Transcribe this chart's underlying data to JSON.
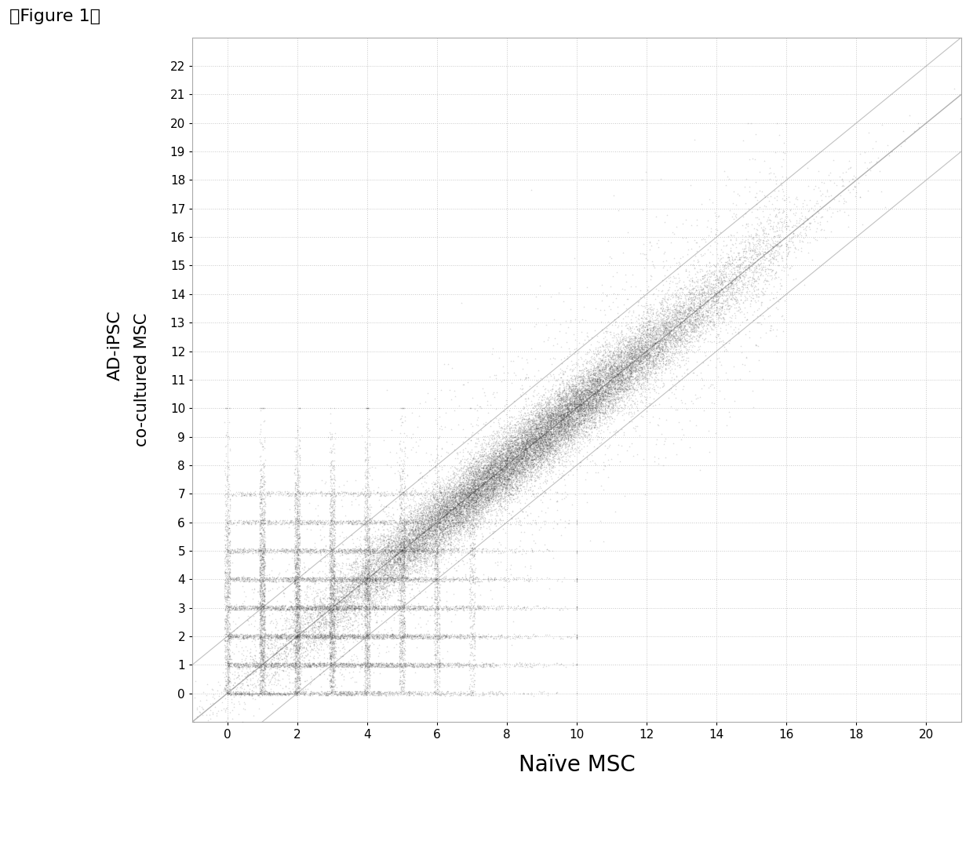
{
  "title": "",
  "figure_label": "【Figure 1】",
  "xlabel": "Naïve MSC",
  "ylabel_line1": "AD-iPSC",
  "ylabel_line2": "co-cultured MSC",
  "xlim": [
    -1,
    21
  ],
  "ylim": [
    -1,
    23
  ],
  "xticks": [
    0,
    2,
    4,
    6,
    8,
    10,
    12,
    14,
    16,
    18,
    20
  ],
  "yticks": [
    0,
    1,
    2,
    3,
    4,
    5,
    6,
    7,
    8,
    9,
    10,
    11,
    12,
    13,
    14,
    15,
    16,
    17,
    18,
    19,
    20,
    21,
    22
  ],
  "scatter_color": "#303030",
  "scatter_alpha": 0.18,
  "scatter_size": 3.5,
  "n_points": 47000,
  "line_color": "#909090",
  "line_alpha": 0.7,
  "grid_color": "#c8c8c8",
  "background_color": "#ffffff",
  "xlabel_fontsize": 20,
  "ylabel_fontsize": 16,
  "tick_fontsize": 11,
  "figure_label_fontsize": 16
}
